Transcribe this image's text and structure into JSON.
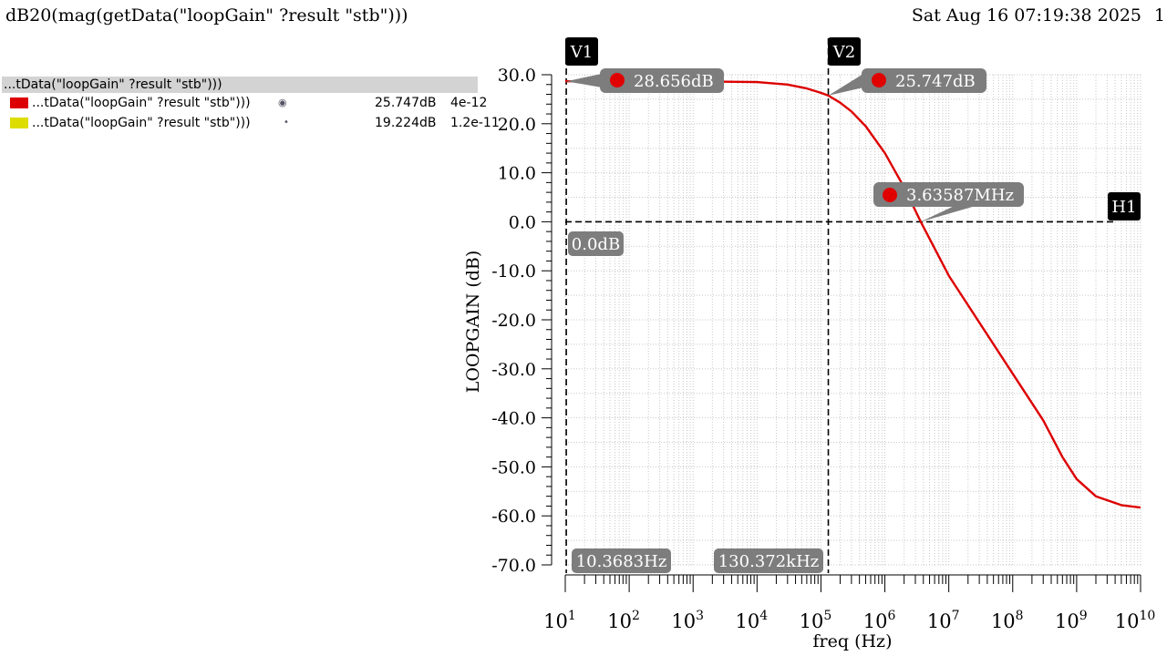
{
  "header": {
    "title": "dB20(mag(getData(\"loopGain\" ?result \"stb\")))",
    "timestamp": "Sat Aug 16 07:19:38 2025",
    "page": "1"
  },
  "legend": {
    "header": "...tData(\"loopGain\" ?result \"stb\")))",
    "items": [
      {
        "name": "...tData(\"loopGain\" ?result \"stb\")))",
        "value": "25.747dB",
        "x": "4e-12",
        "color": "#dd0000",
        "icon": "eye-icon"
      },
      {
        "name": "...tData(\"loopGain\" ?result \"stb\")))",
        "value": "19.224dB",
        "x": "1.2e-11",
        "color": "#dddd00",
        "icon": "dot-icon"
      }
    ]
  },
  "markers": {
    "v1": {
      "flag": "V1",
      "label": "10.3683Hz"
    },
    "v2": {
      "flag": "V2",
      "label": "130.372kHz"
    },
    "h1": {
      "flag": "H1",
      "label": "0.0dB"
    },
    "points": [
      {
        "label": "28.656dB"
      },
      {
        "label": "25.747dB"
      },
      {
        "label": "3.63587MHz"
      }
    ]
  },
  "chart_data": {
    "type": "line",
    "xlabel": "freq (Hz)",
    "ylabel": "LOOPGAIN (dB)",
    "x_scale": "log",
    "xlim": [
      10,
      10000000000
    ],
    "ylim": [
      -70,
      30
    ],
    "grid": true,
    "y_ticks": [
      "30.0",
      "20.0",
      "10.0",
      "0.0",
      "-10.0",
      "-20.0",
      "-30.0",
      "-40.0",
      "-50.0",
      "-60.0",
      "-70.0"
    ],
    "x_ticks": [
      {
        "base": "10",
        "exp": "1"
      },
      {
        "base": "10",
        "exp": "2"
      },
      {
        "base": "10",
        "exp": "3"
      },
      {
        "base": "10",
        "exp": "4"
      },
      {
        "base": "10",
        "exp": "5"
      },
      {
        "base": "10",
        "exp": "6"
      },
      {
        "base": "10",
        "exp": "7"
      },
      {
        "base": "10",
        "exp": "8"
      },
      {
        "base": "10",
        "exp": "9"
      },
      {
        "base": "10",
        "exp": "10"
      }
    ],
    "series": [
      {
        "color": "#dd0000",
        "x": [
          10,
          100,
          1000,
          10000,
          30000,
          60000,
          100000,
          130372,
          200000,
          300000,
          500000,
          1000000,
          2000000,
          3635870,
          10000000,
          100000000,
          300000000,
          600000000,
          1000000000,
          2000000000,
          5000000000,
          10000000000
        ],
        "y": [
          28.66,
          28.66,
          28.64,
          28.5,
          28.0,
          27.2,
          26.3,
          25.75,
          24.3,
          22.5,
          19.5,
          14.0,
          7.0,
          0.0,
          -11.0,
          -31.0,
          -40.5,
          -48.0,
          -52.5,
          -56.0,
          -57.8,
          -58.3
        ]
      }
    ],
    "vertical_cursors_hz": [
      10.3683,
      130372
    ],
    "horizontal_cursor_db": 0.0,
    "marker_points": [
      {
        "x": 10.3683,
        "y": 28.656
      },
      {
        "x": 130372,
        "y": 25.747
      },
      {
        "x": 3635870,
        "y": 0.0
      }
    ]
  }
}
